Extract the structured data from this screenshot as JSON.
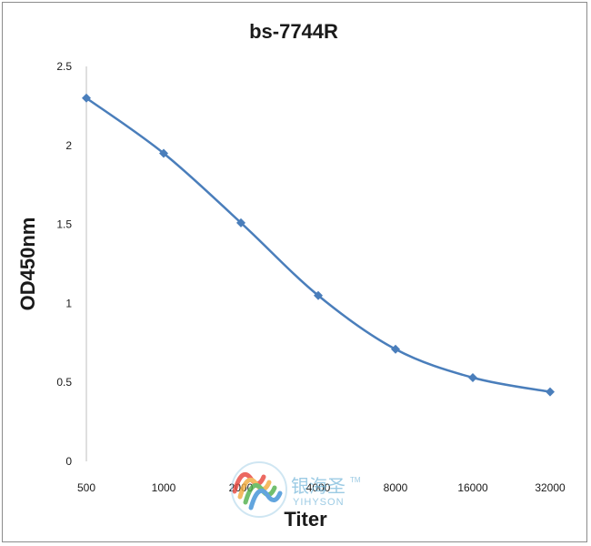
{
  "chart_data": {
    "type": "line",
    "title": "bs-7744R",
    "xlabel": "Titer",
    "ylabel": "OD450nm",
    "categories": [
      "500",
      "1000",
      "2000",
      "4000",
      "8000",
      "16000",
      "32000"
    ],
    "values": [
      2.3,
      1.95,
      1.51,
      1.05,
      0.71,
      0.53,
      0.44
    ],
    "ylim": [
      0,
      2.5
    ],
    "yticks": [
      "0",
      "0.5",
      "1",
      "1.5",
      "2",
      "2.5"
    ],
    "ytick_values": [
      0,
      0.5,
      1,
      1.5,
      2,
      2.5
    ],
    "grid": false,
    "line_color": "#4a7ebb",
    "marker": "diamond"
  },
  "watermark": {
    "brand_cn": "银海圣",
    "brand_en": "YIHYSON",
    "tm": "TM",
    "colors": [
      "#e8443a",
      "#f2a93b",
      "#4fb04a",
      "#3b8fd6"
    ]
  }
}
